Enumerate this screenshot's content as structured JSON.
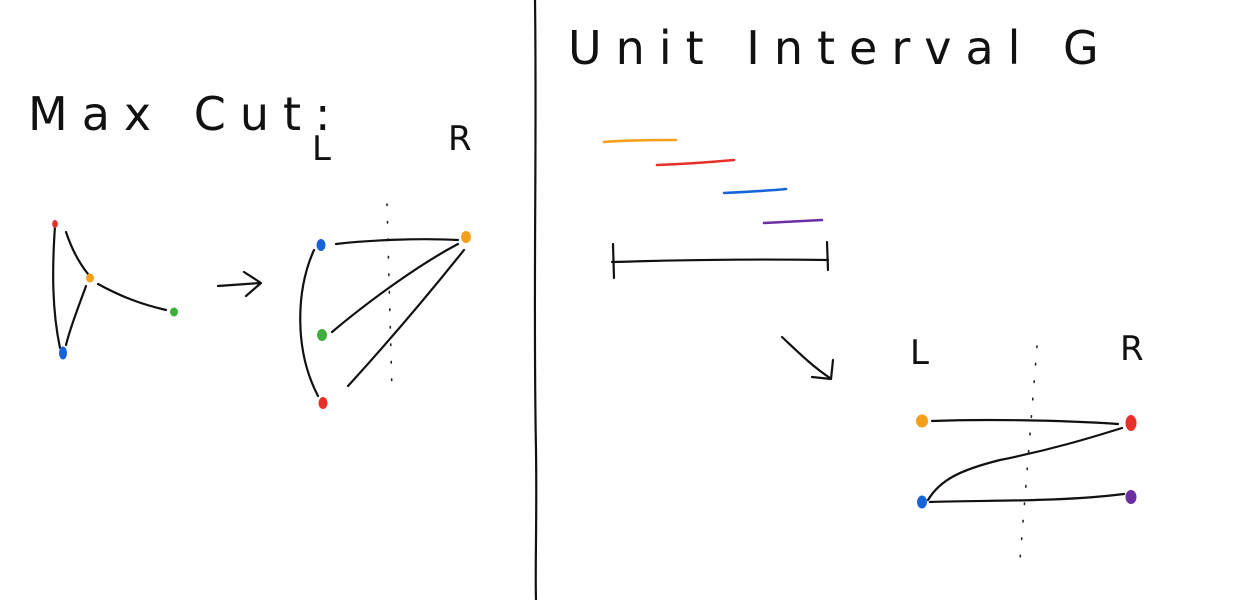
{
  "left_panel": {
    "title": "Max Cut:",
    "left_label": "L",
    "right_label": "R"
  },
  "right_panel": {
    "title": "Unit Interval G",
    "left_label": "L",
    "right_label": "R"
  },
  "colors": {
    "ink": "#111111",
    "orange": "#f5a01a",
    "red": "#e8302a",
    "blue": "#1565d8",
    "green": "#3fae3a",
    "purple": "#6b2fa3"
  }
}
